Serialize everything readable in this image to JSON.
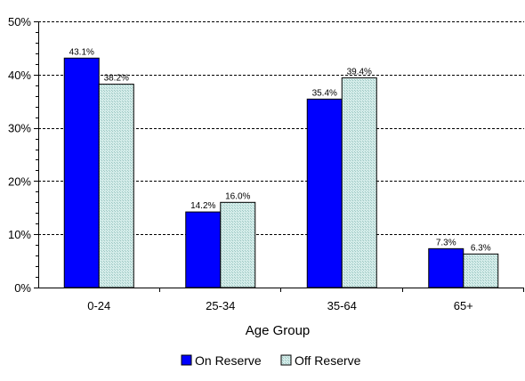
{
  "chart_data": {
    "type": "bar",
    "categories": [
      "0-24",
      "25-34",
      "35-64",
      "65+"
    ],
    "series": [
      {
        "name": "On Reserve",
        "values": [
          43.1,
          14.2,
          35.4,
          7.3
        ],
        "labels": [
          "43.1%",
          "14.2%",
          "35.4%",
          "7.3%"
        ],
        "color": "#0000ff"
      },
      {
        "name": "Off Reserve",
        "values": [
          38.2,
          16.0,
          39.4,
          6.3
        ],
        "labels": [
          "38.2%",
          "16.0%",
          "39.4%",
          "6.3%"
        ],
        "color": "#d4ece9"
      }
    ],
    "xlabel": "Age Group",
    "ylabel": "",
    "ylim": [
      0,
      50
    ],
    "yticks": [
      0,
      10,
      20,
      30,
      40,
      50
    ],
    "ytick_labels": [
      "0%",
      "10%",
      "20%",
      "30%",
      "40%",
      "50%"
    ],
    "grid": "horizontal-dashed",
    "legend_position": "bottom"
  }
}
